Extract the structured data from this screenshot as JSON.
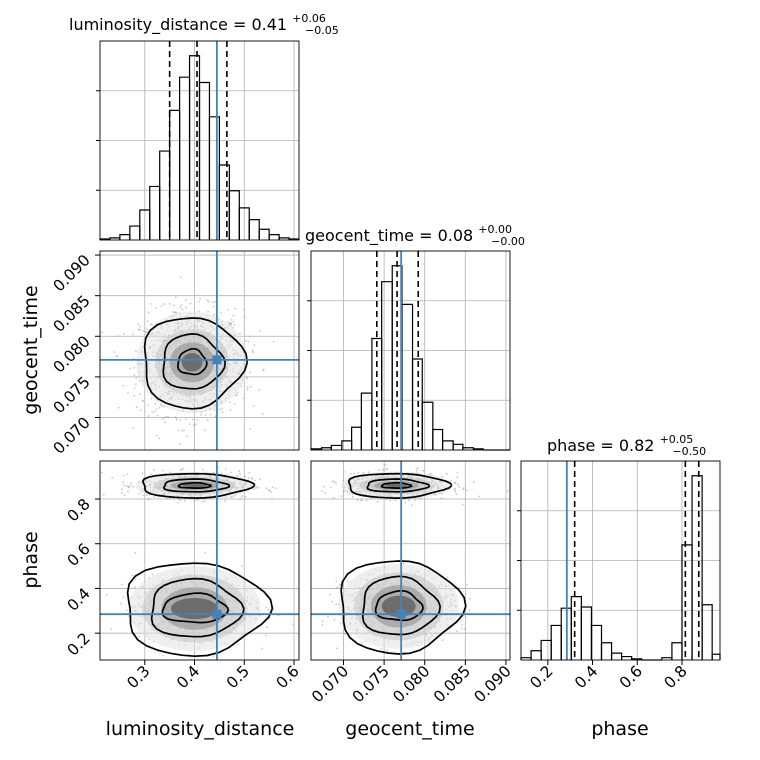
{
  "chart_data": [
    {
      "panel": "luminosity_distance 1D",
      "type": "histogram",
      "title": {
        "param": "luminosity_distance",
        "value": "0.41",
        "plus": "+0.06",
        "minus": "−0.05"
      },
      "xlim": [
        0.21,
        0.61
      ],
      "bins": [
        0.21,
        0.23,
        0.25,
        0.27,
        0.29,
        0.31,
        0.33,
        0.35,
        0.37,
        0.39,
        0.41,
        0.43,
        0.45,
        0.47,
        0.49,
        0.51,
        0.53,
        0.55,
        0.57,
        0.59,
        0.61
      ],
      "counts": [
        1,
        2,
        5,
        13,
        28,
        50,
        83,
        121,
        152,
        172,
        147,
        115,
        70,
        46,
        30,
        19,
        10,
        5,
        2,
        1
      ],
      "quantiles": [
        0.35,
        0.405,
        0.465
      ],
      "truth": 0.445,
      "yticks_visible": false
    },
    {
      "panel": "geocent_time 1D",
      "type": "histogram",
      "title": {
        "param": "geocent_time",
        "value": "0.08",
        "plus": "+0.00",
        "minus": "−0.00"
      },
      "xlim": [
        0.066,
        0.0905
      ],
      "bins": [
        0.066,
        0.0673,
        0.0685,
        0.0698,
        0.071,
        0.0722,
        0.0735,
        0.0747,
        0.076,
        0.0772,
        0.0785,
        0.0797,
        0.081,
        0.0822,
        0.0835,
        0.0847,
        0.086,
        0.0872,
        0.0885,
        0.0897,
        0.0905
      ],
      "counts": [
        1,
        2,
        4,
        8,
        20,
        50,
        98,
        148,
        162,
        128,
        80,
        42,
        18,
        8,
        5,
        2,
        1,
        0,
        0,
        0
      ],
      "quantiles": [
        0.0741,
        0.0766,
        0.0792
      ],
      "truth": 0.0771,
      "yticks_visible": false
    },
    {
      "panel": "phase 1D",
      "type": "histogram",
      "title": {
        "param": "phase",
        "value": "0.82",
        "plus": "+0.05",
        "minus": "−0.50"
      },
      "xlim": [
        0.08,
        0.97
      ],
      "bins": [
        0.08,
        0.125,
        0.17,
        0.215,
        0.26,
        0.305,
        0.35,
        0.395,
        0.44,
        0.485,
        0.53,
        0.575,
        0.62,
        0.665,
        0.71,
        0.755,
        0.8,
        0.845,
        0.89,
        0.935,
        0.97
      ],
      "counts": [
        2,
        8,
        17,
        30,
        45,
        55,
        46,
        30,
        15,
        6,
        3,
        1,
        0,
        0,
        2,
        15,
        100,
        160,
        48,
        5
      ],
      "quantiles": [
        0.32,
        0.815,
        0.875
      ],
      "truth": 0.285,
      "yticks_visible": false
    },
    {
      "panel": "luminosity_distance vs geocent_time",
      "type": "scatter",
      "xlim": [
        0.21,
        0.61
      ],
      "ylim": [
        0.066,
        0.0905
      ],
      "center": [
        0.395,
        0.0768
      ],
      "spread": [
        0.052,
        0.0032
      ],
      "contour_radii": [
        [
          0.022,
          0.0012
        ],
        [
          0.047,
          0.0026
        ],
        [
          0.078,
          0.0043
        ],
        [
          0.118,
          0.0066
        ]
      ],
      "truth": [
        0.445,
        0.0771
      ]
    },
    {
      "panel": "luminosity_distance vs phase",
      "type": "scatter",
      "xlim": [
        0.21,
        0.61
      ],
      "ylim": [
        0.08,
        0.97
      ],
      "clusters": [
        {
          "center": [
            0.4,
            0.86
          ],
          "spread": [
            0.055,
            0.028
          ],
          "contour_radii": [
            [
              0.025,
              0.009
            ],
            [
              0.05,
              0.022
            ],
            [
              0.085,
              0.042
            ],
            [
              0.125,
              0.066
            ]
          ]
        },
        {
          "center": [
            0.4,
            0.31
          ],
          "spread": [
            0.06,
            0.07
          ],
          "contour_radii": [
            [
              0.05,
              0.05
            ],
            [
              0.07,
              0.1
            ],
            [
              0.11,
              0.16
            ],
            [
              0.14,
              0.2
            ]
          ]
        }
      ],
      "truth": [
        0.445,
        0.285
      ]
    },
    {
      "panel": "geocent_time vs phase",
      "type": "scatter",
      "xlim": [
        0.066,
        0.0905
      ],
      "ylim": [
        0.08,
        0.97
      ],
      "clusters": [
        {
          "center": [
            0.0765,
            0.86
          ],
          "spread": [
            0.0032,
            0.028
          ],
          "contour_radii": [
            [
              0.0014,
              0.009
            ],
            [
              0.0029,
              0.022
            ],
            [
              0.0048,
              0.042
            ],
            [
              0.0072,
              0.066
            ]
          ]
        },
        {
          "center": [
            0.0768,
            0.32
          ],
          "spread": [
            0.0034,
            0.07
          ],
          "contour_radii": [
            [
              0.0022,
              0.05
            ],
            [
              0.0036,
              0.1
            ],
            [
              0.0058,
              0.16
            ],
            [
              0.0078,
              0.2
            ]
          ]
        }
      ],
      "truth": [
        0.0771,
        0.285
      ]
    }
  ],
  "axes": {
    "x": {
      "luminosity_distance": {
        "label": "luminosity_distance",
        "ticks": [
          "0.3",
          "0.4",
          "0.5",
          "0.6"
        ],
        "tick_values": [
          0.3,
          0.4,
          0.5,
          0.6
        ]
      },
      "geocent_time": {
        "label": "geocent_time",
        "ticks": [
          "0.070",
          "0.075",
          "0.080",
          "0.085",
          "0.090"
        ],
        "tick_values": [
          0.07,
          0.075,
          0.08,
          0.085,
          0.09
        ]
      },
      "phase": {
        "label": "phase",
        "ticks": [
          "0.2",
          "0.4",
          "0.6",
          "0.8"
        ],
        "tick_values": [
          0.2,
          0.4,
          0.6,
          0.8
        ]
      }
    },
    "y": {
      "geocent_time": {
        "label": "geocent_time",
        "ticks": [
          "0.070",
          "0.075",
          "0.080",
          "0.085",
          "0.090"
        ],
        "tick_values": [
          0.07,
          0.075,
          0.08,
          0.085,
          0.09
        ]
      },
      "phase": {
        "label": "phase",
        "ticks": [
          "0.2",
          "0.4",
          "0.6",
          "0.8"
        ],
        "tick_values": [
          0.2,
          0.4,
          0.6,
          0.8
        ]
      }
    }
  },
  "colors": {
    "truth": "#4682b4",
    "hist": "#000000",
    "grid": "#b0b0b0",
    "points": "#9a9a9a"
  }
}
